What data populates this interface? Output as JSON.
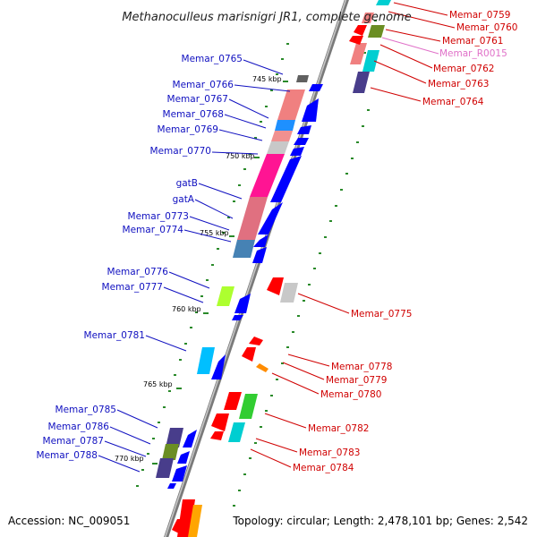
{
  "title": "Methanoculleus marisnigri JR1, complete genome",
  "footer": {
    "accession": "Accession: NC_009051",
    "topology": "Topology: circular; Length: 2,478,101 bp; Genes: 2,542"
  },
  "colors": {
    "left_label": "#1010c0",
    "right_label": "#d00000",
    "rna_label": "#e070c8",
    "backbone": "#8a8a8a",
    "tick_minor": "#2a8a2a"
  },
  "kbp_marks": [
    "745 kbp",
    "750 kbp",
    "755 kbp",
    "760 kbp",
    "765 kbp",
    "770 kbp"
  ],
  "left_labels": [
    "Memar_0765",
    "Memar_0766",
    "Memar_0767",
    "Memar_0768",
    "Memar_0769",
    "Memar_0770",
    "gatB",
    "gatA",
    "Memar_0773",
    "Memar_0774",
    "Memar_0776",
    "Memar_0777",
    "Memar_0781",
    "Memar_0785",
    "Memar_0786",
    "Memar_0787",
    "Memar_0788"
  ],
  "right_labels": [
    "Memar_0759",
    "Memar_0760",
    "Memar_0761",
    "Memar_R0015",
    "Memar_0762",
    "Memar_0763",
    "Memar_0764",
    "Memar_0775",
    "Memar_0778",
    "Memar_0779",
    "Memar_0780",
    "Memar_0782",
    "Memar_0783",
    "Memar_0784"
  ]
}
